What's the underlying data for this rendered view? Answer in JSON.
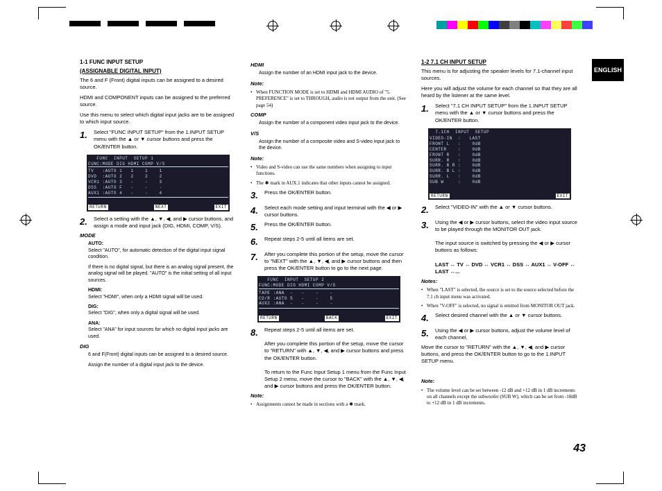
{
  "lang_tab": "ENGLISH",
  "page_number": "43",
  "color_bar_colors": [
    "#00a0a0",
    "#ff00ff",
    "#ffff00",
    "#ff0000",
    "#00ff00",
    "#0000ff",
    "#404040",
    "#808080",
    "#000000",
    "#00c0c0",
    "#ff40ff",
    "#ffff60",
    "#ff4040",
    "#40ff40",
    "#4040ff"
  ],
  "col1": {
    "sec_title": "1-1  FUNC INPUT SETUP",
    "sec_sub": "(ASSIGNABLE DIGITAL INPUT)",
    "p1": "The 6 and F (Front) digital inputs can be assigned to a desired source.",
    "p2": "HDMI and COMPONENT inputs can be assigned to the preferred source.",
    "p3": "Use this menu to select which digital input jacks are to be assigned to which input source.",
    "step1": "Select \"FUNC INPUT SETUP\" from the 1.INPUT SETUP menu with the ▲ or ▼ cursor buttons and press the OK/ENTER button.",
    "osd1_title": "   FUNC  INPUT  SETUP 1",
    "osd1_header": "FUNC:MODE DIG HDMI COMP V/S",
    "osd1_rows": "TV   :AUTO 1   1    1    1\nDVD  :AUTO 2   2    2    2\nVCR1 :AUTO 3   -    -    3\nDSS  :AUTO F   -    -    -\nAUX1 :AUTO 4   -    -    4",
    "osd1_ret": "RETURN",
    "osd1_next": "NEXT",
    "osd1_exit": "EXIT",
    "step2": "Select a setting with the ▲, ▼, ◀, and ▶ cursor buttons, and assign a mode and input jack (DIG, HDMI, COMP, V/S).",
    "mode_title": "MODE",
    "auto_title": "AUTO:",
    "auto_text": "Select \"AUTO\", for automatic detection of the digital input signal condition.",
    "auto_text2": "If there is no digital signal, but there is an analog signal present,  the analog signal will be played. \"AUTO\" is the initial setting of all input sources.",
    "hdmi_title": "HDMI:",
    "hdmi_text": "Select \"HDMI\", when only a HDMI signal will be used.",
    "dig_title": "DIG:",
    "dig_text": "Select \"DIG\", when only a digital signal will be used.",
    "ana_title": "ANA:",
    "ana_text": "Select \"ANA\" for input sources for which no digital input jacks are used.",
    "dig2_title": "DIG",
    "dig2_text": "6 and F(Front) digital inputs can be assigned to a desired source.",
    "dig2_text2": "Assign the number of a digital input jack to the device."
  },
  "col2": {
    "hdmi_h": "HDMI",
    "hdmi_p": "Assign the number of an HDMI input jack to the device.",
    "note1_bullet": "When FUNCTION MODE is set to HDMI and HDMI AUDIO of \"5. PREFERENCE\" is set to THROUGH, audio is not output from the unit. (See page 54)",
    "comp_h": "COMP",
    "comp_p": "Assign the number of a component video input jack to the device.",
    "vs_h": "V/S",
    "vs_p": "Assign the number of a composite video and S-video input jack to the device.",
    "note2_b1": "Video and S-video can use the same numbers when assigning to input functions.",
    "note2_b2": "The ✱ mark in AUX.1 indicates that other inputs cannot be assigned.",
    "step3": "Press the OK/ENTER button.",
    "step4": "Select each mode setting and input terminal with the ◀ or ▶ cursor buttons.",
    "step5": "Press the OK/ENTER button.",
    "step6": "Repeat steps 2-5 until all items are set.",
    "step7": "After you complete this portion of the setup, move the cursor to \"NEXT\" with the ▲, ▼, ◀, and ▶ cursor buttons and then press the OK/ENTER button to go to the next page.",
    "osd2_title": "   FUNC  INPUT  SETUP 2",
    "osd2_header": "FUNC:MODE DIG HDMI COMP V/S",
    "osd2_rows": "TAPE :ANA  -   -    -    -\nCD/R :AUTO 5   -    -    5\nAUX2 :ANA  -   -    -    -",
    "osd2_ret": "RETURN",
    "osd2_back": "BACK",
    "osd2_exit": "EXIT",
    "step8": "Repeat steps 2-5 until all items are set.",
    "step8_p2": "After you complete this portion of the setup, move the cursor to \"RETURN\" with ▲, ▼, ◀, and ▶ cursor buttons and press the OK/ENTER button.",
    "step8_p3": "To return to the Func Input Setup 1 menu from the Func Input Setup 2 menu, move the cursor to \"BACK\" with the ▲, ▼, ◀, and ▶ cursor buttons and press the OK/ENTER button.",
    "note3_b": "Assignments cannot be made in sections with a ✱ mark."
  },
  "col3": {
    "sec_title": "1-2  7.1 CH INPUT SETUP",
    "p1": "This menu is for adjusting the speaker levels for 7.1-channel input sources.",
    "p2": "Here you will adjust the volume for each channel so that they are all heard by the listener at the same level.",
    "step1": "Select \"7.1 CH INPUT SETUP\" from the 1.INPUT SETUP menu with the ▲ or ▼ cursor buttons and press the OK/ENTER button.",
    "osd3_title": "  7.1CH  INPUT  SETUP",
    "osd3_rows": "VIDEO-IN  :   LAST\nFRONT L   :    0dB\nCENTER    :    0dB\nFRONT R   :    0dB\nSURR. R   :    0dB\nSURR. B R :    0dB\nSURR. B L :    0dB\nSURR. L   :    0dB\nSUB W     :    0dB",
    "osd3_ret": "RETURN",
    "osd3_exit": "EXIT",
    "step2": "Select \"VIDEO-IN\" with the ▲ or ▼ cursor buttons.",
    "step3": "Using the ◀ or ▶ cursor buttons, select the video input source to be played through the MONITOR OUT jack.",
    "step3_p2": "The input source is switched by pressing the ◀ or ▶ cursor buttons as follows:",
    "step3_seq": "LAST ↔ TV ↔ DVD ↔ VCR1 ↔ DSS ↔ AUX1 ↔ V-OFF ↔ LAST ↔...",
    "notes_b1": "When \"LAST\" is selected, the source is set to the source selected before the 7.1 ch input menu was activated.",
    "notes_b2": "When \"V-OFF\" is selected, no signal is emitted from MONITOR OUT jack.",
    "step4": "Select desired channel with the ▲ or ▼ cursor buttons.",
    "step5": "Using the ◀ or ▶ cursor buttons, adjust the volume level of each channel.",
    "final_p": "Move the cursor to \"RETURN\" with the ▲, ▼, ◀, and ▶ cursor buttons, and press the OK/ENTER button to go to the 1.INPUT SETUP menu.",
    "note_b": "The volume level can be set between -12 dB and +12 dB in 1 dB increments on all channels except the subwoofer (SUB W), which can be set from -18dB to +12 dB in 1 dB increments."
  }
}
